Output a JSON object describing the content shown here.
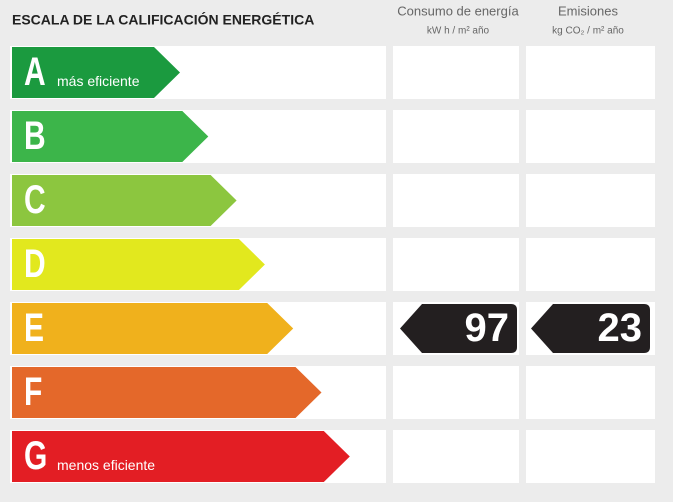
{
  "header": {
    "title": "ESCALA DE LA CALIFICACIÓN ENERGÉTICA",
    "columns": [
      {
        "name": "Consumo de energía",
        "unit": "kW h / m² año"
      },
      {
        "name": "Emisiones",
        "unit": "kg CO₂ / m² año"
      }
    ]
  },
  "scale": [
    {
      "letter": "A",
      "note": "más eficiente",
      "color": "#1b9a3f"
    },
    {
      "letter": "B",
      "color": "#3cb54a"
    },
    {
      "letter": "C",
      "color": "#8cc63f"
    },
    {
      "letter": "D",
      "color": "#e2e81e"
    },
    {
      "letter": "E",
      "color": "#f0b11c"
    },
    {
      "letter": "F",
      "color": "#e4682a"
    },
    {
      "letter": "G",
      "note": "menos eficiente",
      "color": "#e31e24"
    }
  ],
  "result": {
    "rating": "E",
    "consumption": 97,
    "emissions": 23
  }
}
